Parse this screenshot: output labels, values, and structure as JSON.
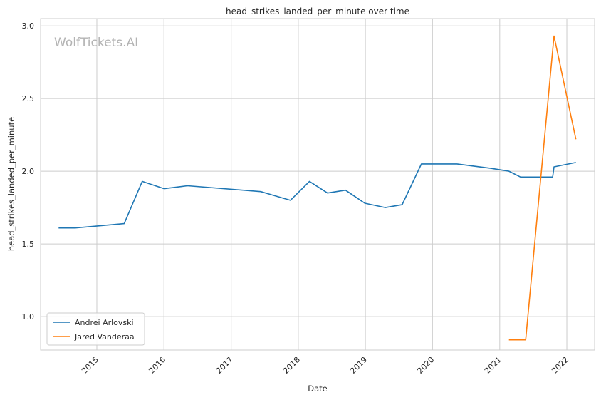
{
  "chart_data": {
    "type": "line",
    "title": "head_strikes_landed_per_minute over time",
    "xlabel": "Date",
    "ylabel": "head_strikes_landed_per_minute",
    "watermark": "WolfTickets.AI",
    "x_ticks": [
      "2015",
      "2016",
      "2017",
      "2018",
      "2019",
      "2020",
      "2021",
      "2022"
    ],
    "y_ticks": [
      "1.0",
      "1.5",
      "2.0",
      "2.5",
      "3.0"
    ],
    "xlim": [
      "2014-03-01",
      "2022-06-01"
    ],
    "ylim": [
      0.77,
      3.05
    ],
    "grid": true,
    "legend_position": "lower-left",
    "series": [
      {
        "name": "Andrei Arlovski",
        "color": "#1f77b4",
        "points": [
          [
            "2014-06-07",
            1.61
          ],
          [
            "2014-09-05",
            1.61
          ],
          [
            "2015-05-30",
            1.64
          ],
          [
            "2015-09-05",
            1.93
          ],
          [
            "2016-01-02",
            1.88
          ],
          [
            "2016-05-08",
            1.9
          ],
          [
            "2017-06-11",
            1.86
          ],
          [
            "2017-11-19",
            1.8
          ],
          [
            "2018-03-03",
            1.93
          ],
          [
            "2018-06-09",
            1.85
          ],
          [
            "2018-09-15",
            1.87
          ],
          [
            "2018-12-29",
            1.78
          ],
          [
            "2019-04-20",
            1.75
          ],
          [
            "2019-07-20",
            1.77
          ],
          [
            "2019-11-02",
            2.05
          ],
          [
            "2020-05-13",
            2.05
          ],
          [
            "2020-11-14",
            2.02
          ],
          [
            "2021-02-20",
            2.0
          ],
          [
            "2021-04-24",
            1.96
          ],
          [
            "2021-10-16",
            1.96
          ],
          [
            "2021-10-23",
            2.03
          ],
          [
            "2022-02-19",
            2.06
          ]
        ]
      },
      {
        "name": "Jared Vanderaa",
        "color": "#ff7f0e",
        "points": [
          [
            "2021-02-20",
            0.84
          ],
          [
            "2021-05-22",
            0.84
          ],
          [
            "2021-10-23",
            2.93
          ],
          [
            "2022-02-19",
            2.22
          ]
        ]
      }
    ]
  }
}
